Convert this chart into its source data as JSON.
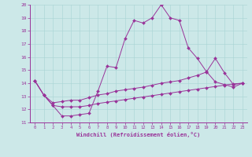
{
  "xlabel": "Windchill (Refroidissement éolien,°C)",
  "background_color": "#cce8e8",
  "line_color": "#993399",
  "xlim": [
    -0.5,
    23.5
  ],
  "ylim": [
    11,
    20
  ],
  "yticks": [
    11,
    12,
    13,
    14,
    15,
    16,
    17,
    18,
    19,
    20
  ],
  "xticks": [
    0,
    1,
    2,
    3,
    4,
    5,
    6,
    7,
    8,
    9,
    10,
    11,
    12,
    13,
    14,
    15,
    16,
    17,
    18,
    19,
    20,
    21,
    22,
    23
  ],
  "series": [
    [
      14.2,
      13.1,
      12.3,
      11.5,
      11.5,
      11.6,
      11.7,
      13.4,
      15.3,
      15.2,
      17.4,
      18.8,
      18.6,
      19.0,
      20.0,
      19.0,
      18.8,
      16.7,
      15.9,
      14.9,
      14.1,
      13.9,
      13.7,
      14.0
    ],
    [
      14.2,
      13.1,
      12.5,
      12.6,
      12.7,
      12.7,
      12.9,
      13.1,
      13.2,
      13.4,
      13.5,
      13.6,
      13.7,
      13.85,
      14.0,
      14.1,
      14.2,
      14.4,
      14.6,
      14.85,
      15.9,
      14.8,
      13.9,
      14.0
    ],
    [
      14.2,
      13.1,
      12.3,
      12.2,
      12.2,
      12.2,
      12.3,
      12.45,
      12.55,
      12.65,
      12.75,
      12.85,
      12.95,
      13.05,
      13.15,
      13.25,
      13.35,
      13.45,
      13.55,
      13.65,
      13.75,
      13.85,
      13.95,
      14.0
    ]
  ]
}
